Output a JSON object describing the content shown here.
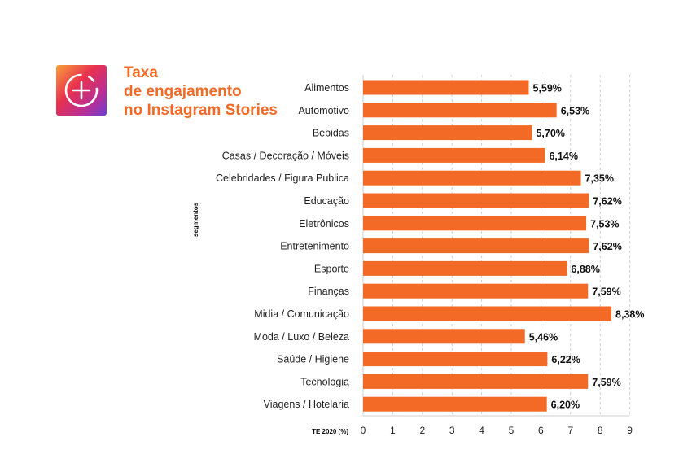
{
  "header": {
    "icon": "instagram-stories-add-icon",
    "title_lines": [
      "Taxa",
      "de engajamento",
      "no Instagram Stories"
    ]
  },
  "colors": {
    "bar": "#f26a25",
    "title": "#f26a25",
    "icon_gradient": [
      "#f9a03a",
      "#e8314f",
      "#b52f9a",
      "#6a3fd1"
    ]
  },
  "chart_data": {
    "type": "bar",
    "orientation": "horizontal",
    "title": "Taxa de engajamento no Instagram Stories",
    "ylabel": "segmentos",
    "xlabel": "TE 2020 (%)",
    "xlim": [
      0,
      9
    ],
    "xticks": [
      0,
      1,
      2,
      3,
      4,
      5,
      6,
      7,
      8,
      9
    ],
    "grid": "vertical-dashed",
    "categories": [
      "Alimentos",
      "Automotivo",
      "Bebidas",
      "Casas / Decoração / Móveis",
      "Celebridades / Figura Publica",
      "Educação",
      "Eletrônicos",
      "Entretenimento",
      "Esporte",
      "Finanças",
      "Midia / Comunicação",
      "Moda / Luxo / Beleza",
      "Saúde / Higiene",
      "Tecnologia",
      "Viagens / Hotelaria"
    ],
    "values": [
      5.59,
      6.53,
      5.7,
      6.14,
      7.35,
      7.62,
      7.53,
      7.62,
      6.88,
      7.59,
      8.38,
      5.46,
      6.22,
      7.59,
      6.2
    ],
    "value_labels": [
      "5,59%",
      "6,53%",
      "5,70%",
      "6,14%",
      "7,35%",
      "7,62%",
      "7,53%",
      "7,62%",
      "6,88%",
      "7,59%",
      "8,38%",
      "5,46%",
      "6,22%",
      "7,59%",
      "6,20%"
    ]
  }
}
